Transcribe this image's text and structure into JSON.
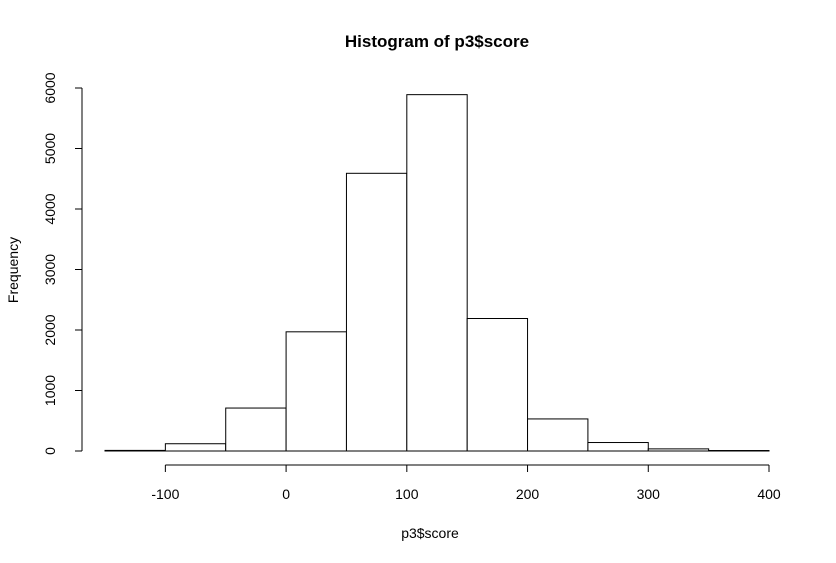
{
  "chart_data": {
    "type": "bar",
    "title": "Histogram of p3$score",
    "xlabel": "p3$score",
    "ylabel": "Frequency",
    "bins": [
      {
        "x0": -150,
        "x1": -100,
        "count": 10
      },
      {
        "x0": -100,
        "x1": -50,
        "count": 120
      },
      {
        "x0": -50,
        "x1": 0,
        "count": 710
      },
      {
        "x0": 0,
        "x1": 50,
        "count": 1970
      },
      {
        "x0": 50,
        "x1": 100,
        "count": 4590
      },
      {
        "x0": 100,
        "x1": 150,
        "count": 5890
      },
      {
        "x0": 150,
        "x1": 200,
        "count": 2190
      },
      {
        "x0": 200,
        "x1": 250,
        "count": 530
      },
      {
        "x0": 250,
        "x1": 300,
        "count": 140
      },
      {
        "x0": 300,
        "x1": 350,
        "count": 35
      },
      {
        "x0": 350,
        "x1": 400,
        "count": 8
      }
    ],
    "xlim": [
      -150,
      400
    ],
    "ylim": [
      0,
      6000
    ],
    "xticks": [
      -100,
      0,
      100,
      200,
      300,
      400
    ],
    "yticks": [
      0,
      1000,
      2000,
      3000,
      4000,
      5000,
      6000
    ],
    "xtick_labels": [
      "-100",
      "0",
      "100",
      "200",
      "300",
      "400"
    ],
    "ytick_labels": [
      "0",
      "1000",
      "2000",
      "3000",
      "4000",
      "5000",
      "6000"
    ],
    "bar_fill": "#ffffff",
    "bar_stroke": "#000000",
    "grid": false,
    "legend": "none"
  }
}
